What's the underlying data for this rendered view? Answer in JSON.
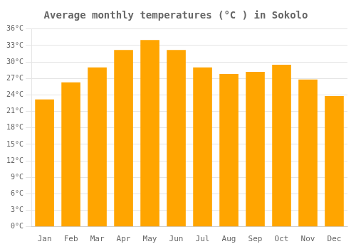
{
  "chart_data": {
    "type": "bar",
    "title": "Average monthly temperatures (°C ) in Sokolo",
    "categories": [
      "Jan",
      "Feb",
      "Mar",
      "Apr",
      "May",
      "Jun",
      "Jul",
      "Aug",
      "Sep",
      "Oct",
      "Nov",
      "Dec"
    ],
    "values": [
      23.2,
      26.3,
      29.0,
      32.2,
      34.0,
      32.2,
      29.0,
      27.8,
      28.2,
      29.5,
      26.8,
      23.8
    ],
    "color": "#FFA500",
    "ylim": [
      0,
      36
    ],
    "yticks": [
      {
        "value": 0,
        "label": "0°C"
      },
      {
        "value": 3,
        "label": "3°C"
      },
      {
        "value": 6,
        "label": "6°C"
      },
      {
        "value": 9,
        "label": "9°C"
      },
      {
        "value": 12,
        "label": "12°C"
      },
      {
        "value": 15,
        "label": "15°C"
      },
      {
        "value": 18,
        "label": "18°C"
      },
      {
        "value": 21,
        "label": "21°C"
      },
      {
        "value": 24,
        "label": "24°C"
      },
      {
        "value": 27,
        "label": "27°C"
      },
      {
        "value": 30,
        "label": "30°C"
      },
      {
        "value": 33,
        "label": "33°C"
      },
      {
        "value": 36,
        "label": "36°C"
      }
    ],
    "grid": true
  }
}
